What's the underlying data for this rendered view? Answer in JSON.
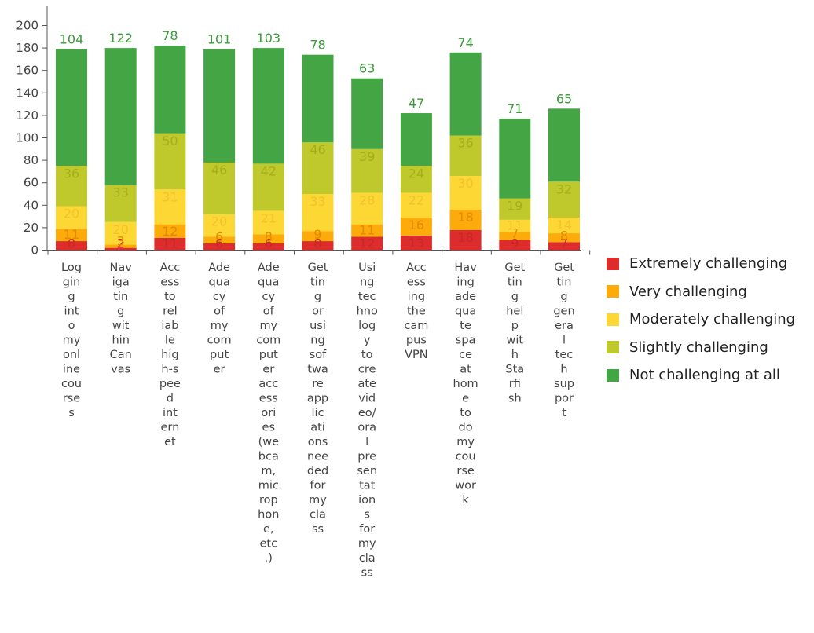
{
  "chart_data": {
    "type": "bar",
    "stacked": true,
    "title": "",
    "xlabel": "",
    "ylabel": "",
    "ylim": [
      0,
      210
    ],
    "yticks": [
      0,
      20,
      40,
      60,
      80,
      100,
      120,
      140,
      160,
      180,
      200
    ],
    "grid": false,
    "legend_position": "right",
    "categories": [
      "Logging into my online courses",
      "Navigating within Canvas",
      "Access to reliable high-speed internet",
      "Adequacy of my computer",
      "Adequacy of my computer accessories (webcam, microphone, etc.)",
      "Getting or using software applications needed for my class",
      "Using technology to create video/oral presentations for my class",
      "Accessing the campus VPN",
      "Having adequate space at home to do my course work",
      "Getting help with Starfish",
      "Getting general tech support"
    ],
    "category_lines": [
      [
        "Log",
        "gin",
        "g",
        "int",
        "o",
        "my",
        "onl",
        "ine",
        "cou",
        "rse",
        "s"
      ],
      [
        "Nav",
        "iga",
        "tin",
        "g",
        "wit",
        "hin",
        "Can",
        "vas"
      ],
      [
        "Acc",
        "ess",
        "to",
        "rel",
        "iab",
        "le",
        "hig",
        "h-s",
        "pee",
        "d",
        "int",
        "ern",
        "et"
      ],
      [
        "Ade",
        "qua",
        "cy",
        "of",
        "my",
        "com",
        "put",
        "er"
      ],
      [
        "Ade",
        "qua",
        "cy",
        "of",
        "my",
        "com",
        "put",
        "er",
        "acc",
        "ess",
        "ori",
        "es",
        "(we",
        "bca",
        "m,",
        "mic",
        "rop",
        "hon",
        "e,",
        "etc",
        ".)"
      ],
      [
        "Get",
        "tin",
        "g",
        "or",
        "usi",
        "ng",
        "sof",
        "twa",
        "re",
        "app",
        "lic",
        "ati",
        "ons",
        "nee",
        "ded",
        "for",
        "my",
        "cla",
        "ss"
      ],
      [
        "Usi",
        "ng",
        "tec",
        "hno",
        "log",
        "y",
        "to",
        "cre",
        "ate",
        "vid",
        "eo/",
        "ora",
        "l",
        "pre",
        "sen",
        "tat",
        "ion",
        "s",
        "for",
        "my",
        "cla",
        "ss"
      ],
      [
        "Acc",
        "ess",
        "ing",
        "the",
        "cam",
        "pus",
        "VPN"
      ],
      [
        "Hav",
        "ing",
        "ade",
        "qua",
        "te",
        "spa",
        "ce",
        "at",
        "hom",
        "e",
        "to",
        "do",
        "my",
        "cou",
        "rse",
        "wor",
        "k"
      ],
      [
        "Get",
        "tin",
        "g",
        "hel",
        "p",
        "wit",
        "h",
        "Sta",
        "rfi",
        "sh"
      ],
      [
        "Get",
        "tin",
        "g",
        "gen",
        "era",
        "l",
        "tec",
        "h",
        "sup",
        "por",
        "t"
      ]
    ],
    "series": [
      {
        "name": "Extremely challenging",
        "color": "#dd2c2c",
        "values": [
          8,
          2,
          11,
          6,
          6,
          8,
          12,
          13,
          18,
          9,
          7
        ]
      },
      {
        "name": "Very challenging",
        "color": "#fdaa0b",
        "values": [
          11,
          3,
          12,
          6,
          8,
          9,
          11,
          16,
          18,
          7,
          8
        ]
      },
      {
        "name": "Moderately challenging",
        "color": "#fdd835",
        "values": [
          20,
          20,
          31,
          20,
          21,
          33,
          28,
          22,
          30,
          11,
          14
        ]
      },
      {
        "name": "Slightly challenging",
        "color": "#c0c92c",
        "values": [
          36,
          33,
          50,
          46,
          42,
          46,
          39,
          24,
          36,
          19,
          32
        ]
      },
      {
        "name": "Not challenging at all",
        "color": "#43a543",
        "values": [
          104,
          122,
          78,
          101,
          103,
          78,
          63,
          47,
          74,
          71,
          65
        ]
      }
    ],
    "label_colors": [
      "#c62828",
      "#e08a00",
      "#f2c12e",
      "#a6ad1d",
      "#3d9a3d"
    ]
  }
}
